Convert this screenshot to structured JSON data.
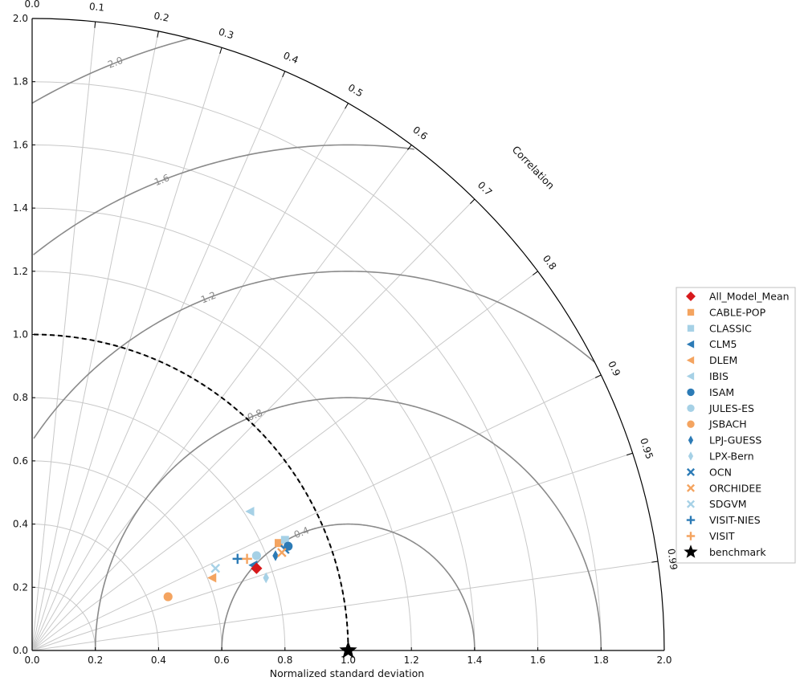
{
  "chart_data": {
    "type": "scatter",
    "subtype": "taylor_diagram",
    "xlabel": "Normalized standard deviation",
    "arc_label": "Correlation",
    "axis_range": [
      0.0,
      2.0
    ],
    "std_ticks": [
      "0.0",
      "0.2",
      "0.4",
      "0.6",
      "0.8",
      "1.0",
      "1.2",
      "1.4",
      "1.6",
      "1.8",
      "2.0"
    ],
    "correlation_ticks": [
      {
        "value": 0.0,
        "label": "0.0"
      },
      {
        "value": 0.1,
        "label": "0.1"
      },
      {
        "value": 0.2,
        "label": "0.2"
      },
      {
        "value": 0.3,
        "label": "0.3"
      },
      {
        "value": 0.4,
        "label": "0.4"
      },
      {
        "value": 0.5,
        "label": "0.5"
      },
      {
        "value": 0.6,
        "label": "0.6"
      },
      {
        "value": 0.7,
        "label": "0.7"
      },
      {
        "value": 0.8,
        "label": "0.8"
      },
      {
        "value": 0.9,
        "label": "0.9"
      },
      {
        "value": 0.95,
        "label": "0.95"
      },
      {
        "value": 0.99,
        "label": "0.99"
      }
    ],
    "rms_contours": [
      {
        "value": 0.4,
        "label": "0.4"
      },
      {
        "value": 0.8,
        "label": "0.8"
      },
      {
        "value": 1.2,
        "label": "1.2"
      },
      {
        "value": 1.6,
        "label": "1.6"
      },
      {
        "value": 2.0,
        "label": "2.0"
      }
    ],
    "reference_std": 1.0,
    "grid": true,
    "legend_position": "right",
    "series": [
      {
        "name": "All_Model_Mean",
        "marker": "diamond",
        "color": "#d7191c",
        "x": 0.71,
        "y": 0.26
      },
      {
        "name": "CABLE-POP",
        "marker": "square",
        "color": "#f4a460",
        "x": 0.78,
        "y": 0.34
      },
      {
        "name": "CLASSIC",
        "marker": "square",
        "color": "#a6d1e6",
        "x": 0.8,
        "y": 0.35
      },
      {
        "name": "CLM5",
        "marker": "triangle-left",
        "color": "#2c7bb6",
        "x": 0.7,
        "y": 0.27
      },
      {
        "name": "DLEM",
        "marker": "triangle-left",
        "color": "#f4a460",
        "x": 0.57,
        "y": 0.23
      },
      {
        "name": "IBIS",
        "marker": "triangle-left",
        "color": "#a6d1e6",
        "x": 0.69,
        "y": 0.44
      },
      {
        "name": "ISAM",
        "marker": "circle",
        "color": "#2c7bb6",
        "x": 0.81,
        "y": 0.33
      },
      {
        "name": "JULES-ES",
        "marker": "circle",
        "color": "#a6d1e6",
        "x": 0.71,
        "y": 0.3
      },
      {
        "name": "JSBACH",
        "marker": "circle",
        "color": "#f4a460",
        "x": 0.43,
        "y": 0.17
      },
      {
        "name": "LPJ-GUESS",
        "marker": "thin-diamond",
        "color": "#2c7bb6",
        "x": 0.77,
        "y": 0.3
      },
      {
        "name": "LPX-Bern",
        "marker": "thin-diamond",
        "color": "#a6d1e6",
        "x": 0.74,
        "y": 0.23
      },
      {
        "name": "OCN",
        "marker": "x",
        "color": "#2c7bb6",
        "x": 0.8,
        "y": 0.32
      },
      {
        "name": "ORCHIDEE",
        "marker": "x",
        "color": "#f4a460",
        "x": 0.79,
        "y": 0.31
      },
      {
        "name": "SDGVM",
        "marker": "x",
        "color": "#a6d1e6",
        "x": 0.58,
        "y": 0.26
      },
      {
        "name": "VISIT-NIES",
        "marker": "plus",
        "color": "#2c7bb6",
        "x": 0.65,
        "y": 0.29
      },
      {
        "name": "VISIT",
        "marker": "plus",
        "color": "#f4a460",
        "x": 0.68,
        "y": 0.29
      },
      {
        "name": "benchmark",
        "marker": "star",
        "color": "#000000",
        "x": 1.0,
        "y": 0.0
      }
    ]
  }
}
